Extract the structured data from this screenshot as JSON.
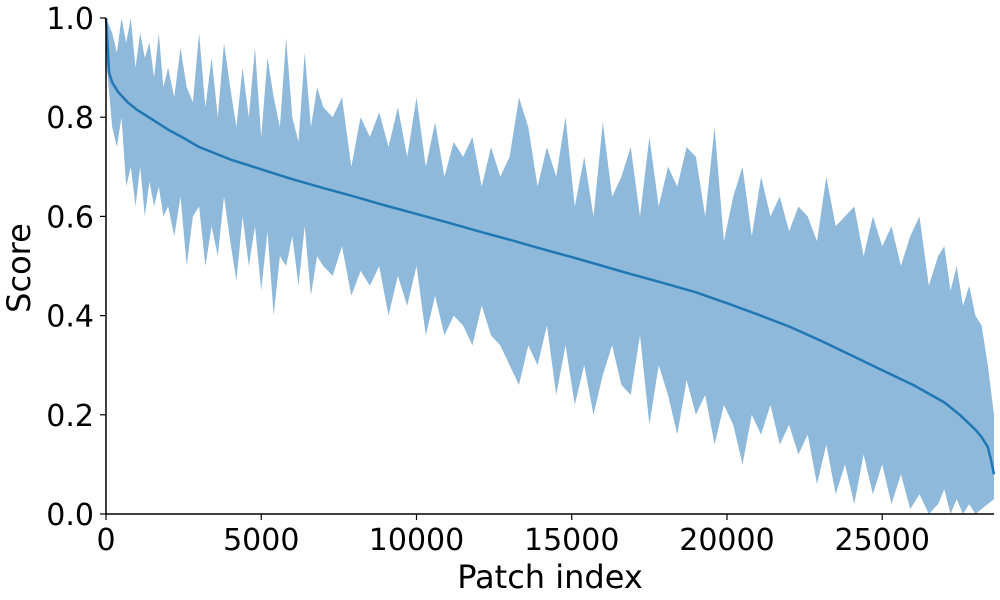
{
  "chart_data": {
    "type": "line",
    "title": "",
    "xlabel": "Patch index",
    "ylabel": "Score",
    "xlim": [
      0,
      28600
    ],
    "ylim": [
      0.0,
      1.0
    ],
    "xticks": [
      0,
      5000,
      10000,
      15000,
      20000,
      25000
    ],
    "xtick_labels": [
      "0",
      "5000",
      "10000",
      "15000",
      "20000",
      "25000"
    ],
    "yticks": [
      0.0,
      0.2,
      0.4,
      0.6,
      0.8,
      1.0
    ],
    "ytick_labels": [
      "0.0",
      "0.2",
      "0.4",
      "0.6",
      "0.8",
      "1.0"
    ],
    "grid": false,
    "legend": "none",
    "colors": {
      "line": "#1f77b4",
      "band": "#8fb9da"
    },
    "series": [
      {
        "x": [
          0,
          100,
          200,
          400,
          700,
          1000,
          1500,
          2000,
          2500,
          3000,
          4000,
          5000,
          6000,
          7000,
          8000,
          9000,
          10000,
          11000,
          12000,
          13000,
          14000,
          15000,
          16000,
          17000,
          18000,
          19000,
          20000,
          21000,
          22000,
          23000,
          24000,
          25000,
          26000,
          27000,
          27500,
          28000,
          28200,
          28400,
          28500,
          28600
        ],
        "y": [
          1.0,
          0.89,
          0.87,
          0.85,
          0.83,
          0.815,
          0.795,
          0.775,
          0.758,
          0.74,
          0.715,
          0.695,
          0.675,
          0.657,
          0.64,
          0.622,
          0.605,
          0.588,
          0.57,
          0.553,
          0.535,
          0.518,
          0.5,
          0.482,
          0.465,
          0.447,
          0.425,
          0.402,
          0.378,
          0.35,
          0.32,
          0.29,
          0.26,
          0.225,
          0.2,
          0.17,
          0.155,
          0.135,
          0.11,
          0.08
        ]
      }
    ],
    "band": {
      "x": [
        0,
        200,
        350,
        500,
        650,
        800,
        950,
        1100,
        1250,
        1400,
        1550,
        1700,
        1850,
        2000,
        2200,
        2400,
        2600,
        2800,
        3000,
        3200,
        3400,
        3600,
        3800,
        4000,
        4200,
        4400,
        4600,
        4800,
        5000,
        5200,
        5400,
        5600,
        5800,
        6000,
        6200,
        6400,
        6600,
        6800,
        7000,
        7300,
        7600,
        7900,
        8200,
        8500,
        8800,
        9100,
        9400,
        9700,
        10000,
        10300,
        10600,
        10900,
        11200,
        11500,
        11800,
        12100,
        12400,
        12700,
        13000,
        13300,
        13600,
        13900,
        14200,
        14500,
        14800,
        15100,
        15400,
        15700,
        16000,
        16300,
        16600,
        16900,
        17200,
        17500,
        17800,
        18100,
        18400,
        18700,
        19000,
        19300,
        19600,
        19900,
        20200,
        20500,
        20800,
        21100,
        21400,
        21700,
        22000,
        22300,
        22600,
        22900,
        23200,
        23500,
        23800,
        24100,
        24400,
        24700,
        25000,
        25300,
        25600,
        25900,
        26200,
        26500,
        26800,
        27000,
        27200,
        27400,
        27600,
        27800,
        28000,
        28200,
        28400,
        28600
      ],
      "upper": [
        1.0,
        0.97,
        0.93,
        1.0,
        0.95,
        1.0,
        0.9,
        0.97,
        0.92,
        0.95,
        0.88,
        0.97,
        0.86,
        0.9,
        0.84,
        0.94,
        0.86,
        0.83,
        0.97,
        0.82,
        0.92,
        0.8,
        0.95,
        0.86,
        0.78,
        0.9,
        0.8,
        0.94,
        0.76,
        0.92,
        0.84,
        0.78,
        0.96,
        0.8,
        0.75,
        0.93,
        0.78,
        0.86,
        0.82,
        0.8,
        0.84,
        0.7,
        0.8,
        0.76,
        0.81,
        0.74,
        0.82,
        0.72,
        0.84,
        0.7,
        0.79,
        0.68,
        0.75,
        0.72,
        0.76,
        0.66,
        0.74,
        0.68,
        0.72,
        0.84,
        0.78,
        0.66,
        0.74,
        0.68,
        0.8,
        0.62,
        0.72,
        0.6,
        0.79,
        0.64,
        0.68,
        0.74,
        0.6,
        0.76,
        0.62,
        0.7,
        0.66,
        0.74,
        0.72,
        0.6,
        0.78,
        0.55,
        0.64,
        0.7,
        0.56,
        0.68,
        0.6,
        0.64,
        0.57,
        0.62,
        0.6,
        0.55,
        0.68,
        0.58,
        0.6,
        0.62,
        0.52,
        0.6,
        0.54,
        0.58,
        0.5,
        0.56,
        0.6,
        0.46,
        0.52,
        0.54,
        0.45,
        0.5,
        0.42,
        0.46,
        0.4,
        0.38,
        0.3,
        0.2
      ],
      "lower": [
        0.92,
        0.78,
        0.74,
        0.8,
        0.66,
        0.7,
        0.62,
        0.7,
        0.6,
        0.67,
        0.62,
        0.66,
        0.6,
        0.62,
        0.56,
        0.64,
        0.5,
        0.6,
        0.62,
        0.5,
        0.58,
        0.52,
        0.64,
        0.55,
        0.47,
        0.6,
        0.5,
        0.58,
        0.45,
        0.57,
        0.4,
        0.52,
        0.5,
        0.56,
        0.46,
        0.58,
        0.44,
        0.52,
        0.5,
        0.48,
        0.54,
        0.44,
        0.49,
        0.46,
        0.5,
        0.4,
        0.48,
        0.42,
        0.5,
        0.36,
        0.44,
        0.36,
        0.4,
        0.38,
        0.34,
        0.42,
        0.36,
        0.34,
        0.3,
        0.26,
        0.34,
        0.3,
        0.38,
        0.24,
        0.34,
        0.22,
        0.3,
        0.2,
        0.28,
        0.34,
        0.26,
        0.24,
        0.36,
        0.18,
        0.3,
        0.24,
        0.16,
        0.27,
        0.2,
        0.24,
        0.14,
        0.22,
        0.18,
        0.1,
        0.2,
        0.16,
        0.22,
        0.14,
        0.18,
        0.12,
        0.16,
        0.06,
        0.14,
        0.04,
        0.1,
        0.02,
        0.12,
        0.04,
        0.1,
        0.02,
        0.08,
        0.01,
        0.04,
        0.0,
        0.02,
        0.05,
        0.0,
        0.03,
        0.0,
        0.02,
        0.0,
        0.01,
        0.02,
        0.03
      ]
    }
  }
}
